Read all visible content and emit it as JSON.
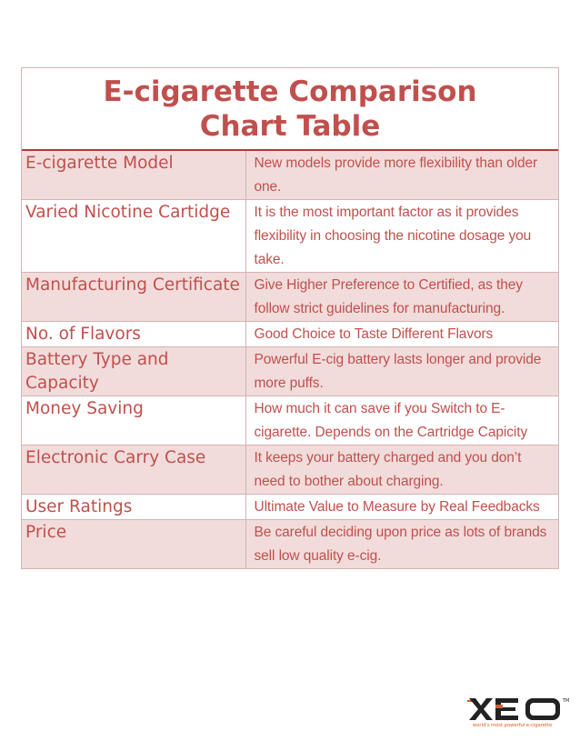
{
  "title": "E-cigarette Comparison Chart Table",
  "rows": [
    {
      "label": "E-cigarette Model",
      "desc": "New models provide more flexibility than older one."
    },
    {
      "label": "Varied Nicotine Cartidge",
      "desc": "It is the most important factor as it provides flexibility in choosing the nicotine dosage you take."
    },
    {
      "label": "Manufacturing Certificate",
      "desc": "Give Higher Preference to Certified, as they follow strict guidelines for manufacturing."
    },
    {
      "label": "No. of Flavors",
      "desc": "Good Choice to Taste Different Flavors"
    },
    {
      "label": "Battery Type and Capacity",
      "desc": "Powerful E-cig battery lasts longer and provide more puffs."
    },
    {
      "label": "Money Saving",
      "desc": "How much it can save if you Switch to E-cigarette. Depends on the Cartridge Capicity"
    },
    {
      "label": "Electronic Carry Case",
      "desc": "It keeps your battery charged and you don’t need to bother about charging."
    },
    {
      "label": "User Ratings",
      "desc": "Ultimate Value to Measure by Real Feedbacks"
    },
    {
      "label": "Price",
      "desc": "Be careful deciding upon price as lots of brands sell low quality e-cig."
    }
  ],
  "logo": {
    "text": "XEO",
    "tagline": "world's most powerful e-cigarette"
  },
  "colors": {
    "accent": "#c0504d",
    "shade": "#f1dcdb",
    "border": "#d3b4b4"
  }
}
